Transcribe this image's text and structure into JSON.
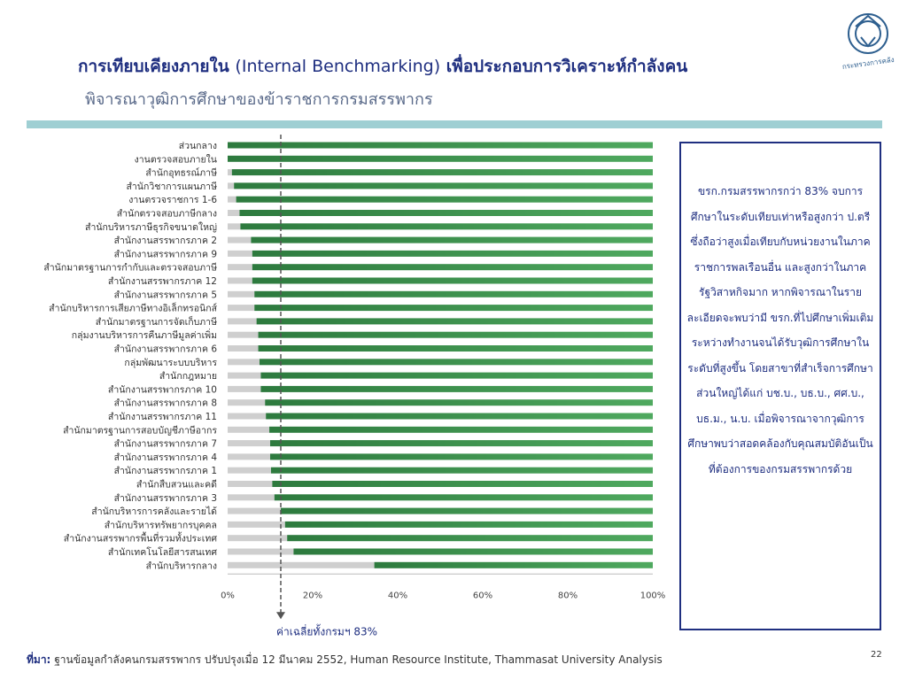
{
  "header": {
    "title_th1": "การเทียบเคียงภายใน",
    "title_en": "(Internal Benchmarking)",
    "title_th2": "เพื่อประกอบการวิเคราะห์กำลังคน",
    "subtitle": "พิจารณาวุฒิการศึกษาของข้าราชการกรมสรรพากร"
  },
  "logo": {
    "text": "กระทรวงการคลัง",
    "icon": "garuda-seal-icon",
    "color": "#2e5f8f"
  },
  "colors": {
    "green_dark": "#2d7a3e",
    "green_light": "#4fa95f",
    "gray": "#cfcfcf",
    "title": "#1f2f80"
  },
  "chart_data": {
    "type": "bar",
    "orientation": "horizontal",
    "stacked": true,
    "categories": [
      "ส่วนกลาง",
      "งานตรวจสอบภายใน",
      "สำนักอุทธรณ์ภาษี",
      "สำนักวิชาการแผนภาษี",
      "งานตรวจราชการ 1-6",
      "สำนักตรวจสอบภาษีกลาง",
      "สำนักบริหารภาษีธุรกิจขนาดใหญ่",
      "สำนักงานสรรพากรภาค 2",
      "สำนักงานสรรพากรภาค 9",
      "สำนักมาตรฐานการกำกับและตรวจสอบภาษี",
      "สำนักงานสรรพากรภาค 12",
      "สำนักงานสรรพากรภาค 5",
      "สำนักบริหารการเสียภาษีทางอิเล็กทรอนิกส์",
      "สำนักมาตรฐานการจัดเก็บภาษี",
      "กลุ่มงานบริหารการคืนภาษีมูลค่าเพิ่ม",
      "สำนักงานสรรพากรภาค 6",
      "กลุ่มพัฒนาระบบบริหาร",
      "สำนักกฎหมาย",
      "สำนักงานสรรพากรภาค 10",
      "สำนักงานสรรพากรภาค 8",
      "สำนักงานสรรพากรภาค 11",
      "สำนักมาตรฐานการสอบบัญชีภาษีอากร",
      "สำนักงานสรรพากรภาค 7",
      "สำนักงานสรรพากรภาค 4",
      "สำนักงานสรรพากรภาค 1",
      "สำนักสืบสวนและคดี",
      "สำนักงานสรรพากรภาค 3",
      "สำนักบริหารการคลังและรายได้",
      "สำนักบริหารทรัพยากรบุคคล",
      "สำนักงานสรรพากรพื้นที่รวมทั้งประเทศ",
      "สำนักเทคโนโลยีสารสนเทศ",
      "สำนักบริหารกลาง"
    ],
    "series": [
      {
        "values": [
          0,
          0,
          1,
          1.5,
          2,
          2.8,
          3,
          5.5,
          5.8,
          5.8,
          5.8,
          6.3,
          6.3,
          6.8,
          7.2,
          7.2,
          7.5,
          7.8,
          7.8,
          8.8,
          9,
          9.8,
          10,
          10,
          10.2,
          10.5,
          11,
          12.5,
          13.5,
          14,
          15.5,
          34.5
        ]
      },
      {
        "values": [
          100,
          100,
          99,
          98.5,
          98,
          97.2,
          97,
          94.5,
          94.2,
          94.2,
          94.2,
          93.7,
          93.7,
          93.2,
          92.8,
          92.8,
          92.5,
          92.2,
          92.2,
          91.2,
          91,
          90.2,
          90,
          90,
          89.8,
          89.5,
          89,
          87.5,
          86.5,
          86,
          84.5,
          65.5
        ]
      }
    ],
    "xlim": [
      0,
      100
    ],
    "xticks": [
      "0%",
      "20%",
      "40%",
      "60%",
      "80%",
      "100%"
    ],
    "reference_line": {
      "value": 12.5,
      "label": "ค่าเฉลี่ยทั้งกรมฯ 83%"
    },
    "grid": false,
    "legend": "none"
  },
  "note": "ขรก.กรมสรรพากรกว่า 83% จบการศึกษาในระดับเทียบเท่าหรือสูงกว่า ป.ตรี ซึ่งถือว่าสูงเมื่อเทียบกับหน่วยงานในภาคราชการพลเรือนอื่น และสูงกว่าในภาครัฐวิสาหกิจมาก หากพิจารณาในรายละเอียดจะพบว่ามี ขรก.ที่ไปศึกษาเพิ่มเติมระหว่างทำงานจนได้รับวุฒิการศึกษาในระดับที่สูงขึ้น โดยสาขาที่สำเร็จการศึกษาส่วนใหญ่ได้แก่ บช.บ., บธ.บ., ศศ.บ., บธ.ม., น.บ. เมื่อพิจารณาจากวุฒิการศึกษาพบว่าสอดคล้องกับคุณสมบัติอันเป็นที่ต้องการของกรมสรรพากรด้วย",
  "footer": {
    "source_label": "ที่มา:",
    "source_text": "ฐานข้อมูลกำลังคนกรมสรรพากร ปรับปรุงเมื่อ 12 มีนาคม 2552, Human Resource Institute, Thammasat University Analysis"
  },
  "page_number": "22"
}
